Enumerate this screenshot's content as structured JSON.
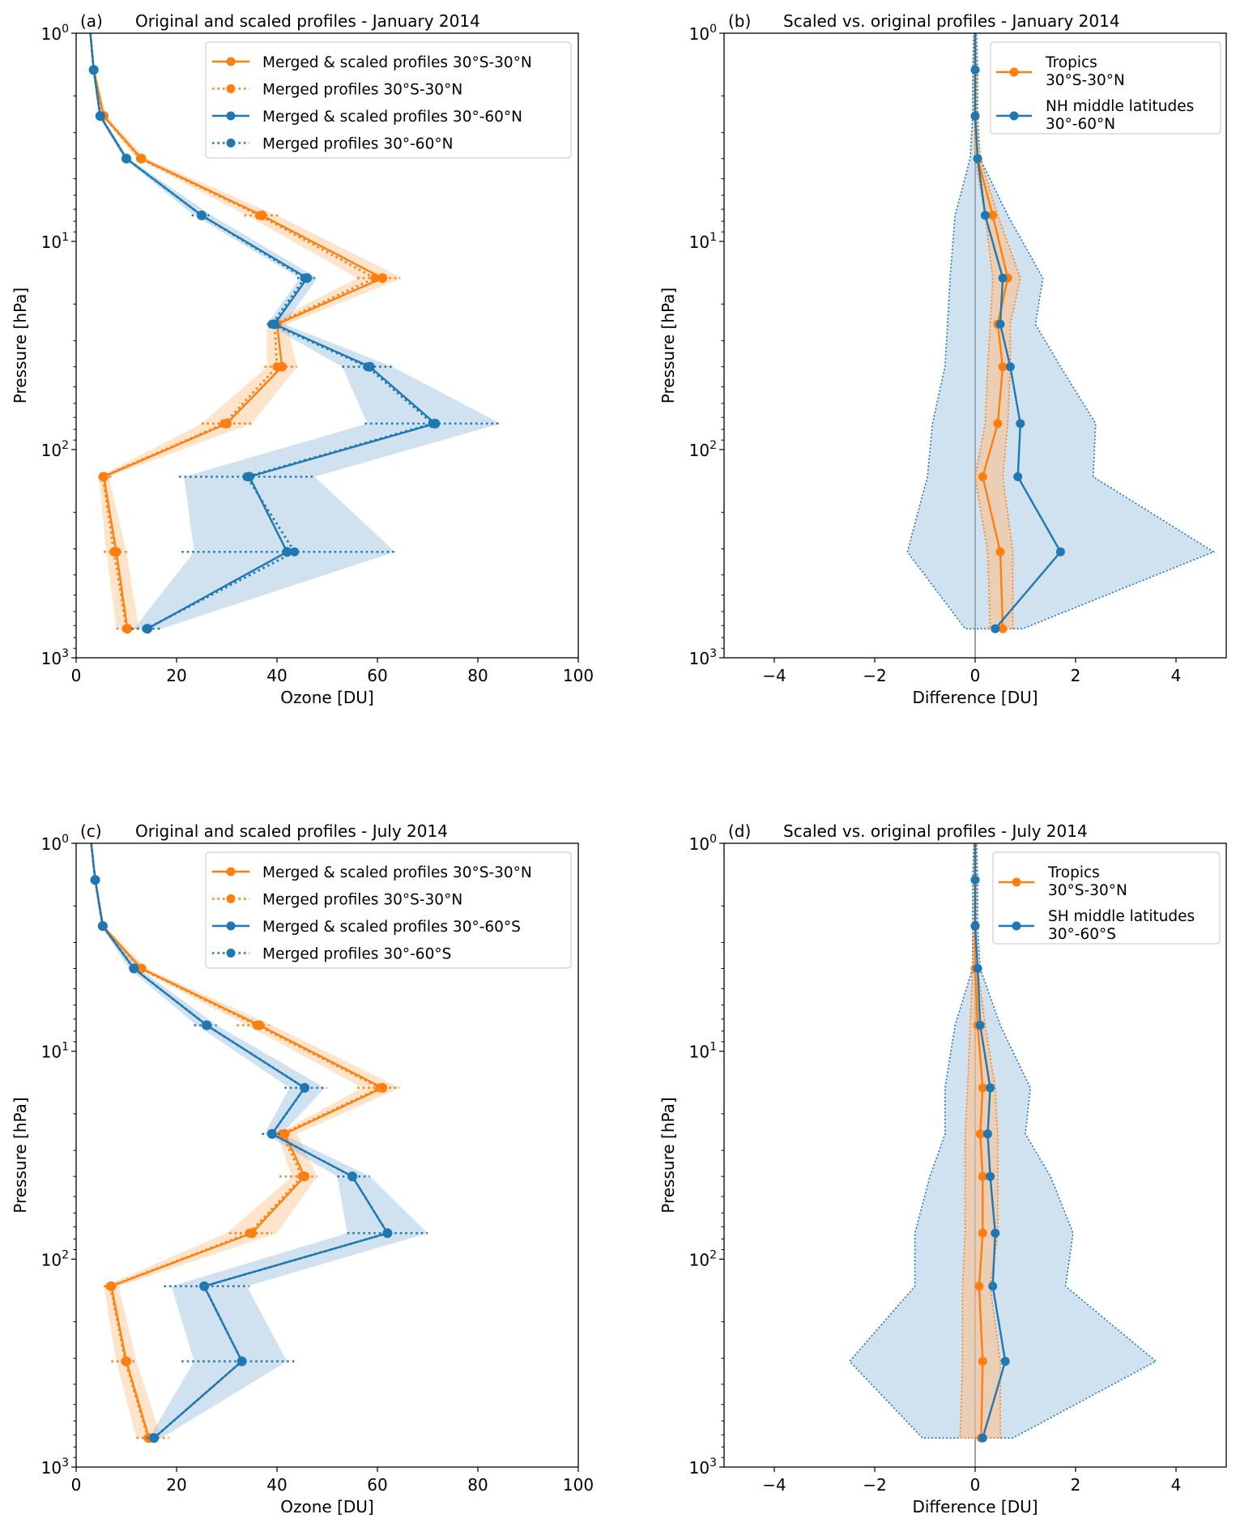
{
  "colors": {
    "orange": "#ff7f0e",
    "blue": "#1f77b4",
    "orange_band": "#ffbe86",
    "blue_band": "#8fbbd9",
    "zero_line": "#a0a0a0"
  },
  "chart_data": [
    {
      "id": "a",
      "type": "line",
      "panel_label": "(a)",
      "title": "Original and scaled profiles - January 2014",
      "xlabel": "Ozone [DU]",
      "ylabel": "Pressure [hPa]",
      "xlim": [
        0,
        100
      ],
      "ylim": [
        1000,
        1
      ],
      "yscale": "log",
      "xticks": [
        "0",
        "20",
        "40",
        "60",
        "80",
        "100"
      ],
      "xtick_values": [
        0,
        20,
        40,
        60,
        80,
        100
      ],
      "yticks": [
        "10^0",
        "10^1",
        "10^2",
        "10^3"
      ],
      "legend_position": "top-right",
      "pressure_levels": [
        0.6,
        1.5,
        2.5,
        4,
        7.5,
        15,
        25,
        40,
        75,
        135,
        310,
        725
      ],
      "series": [
        {
          "name": "Merged & scaled profiles 30°S-30°N",
          "color": "orange",
          "style": "solid",
          "values": [
            2.0,
            3.5,
            5.5,
            13,
            37,
            61,
            40,
            41,
            30,
            5.5,
            8,
            10.2
          ],
          "band_lo": [
            2.0,
            3.3,
            5.2,
            12,
            34,
            56,
            38,
            38,
            25,
            4.5,
            6,
            8
          ],
          "band_hi": [
            2.0,
            3.7,
            6.0,
            14,
            40,
            65,
            42,
            44,
            35,
            6.5,
            10,
            12.5
          ]
        },
        {
          "name": "Merged profiles 30°S-30°N",
          "color": "orange",
          "style": "dotted",
          "values": [
            2.0,
            3.5,
            5.4,
            12.8,
            36.5,
            59.5,
            39.5,
            40,
            29.5,
            5.3,
            7.5,
            10
          ],
          "err_lo": [
            null,
            null,
            null,
            null,
            33.5,
            56,
            38,
            37.5,
            25,
            4.5,
            5.5,
            8
          ],
          "err_hi": [
            null,
            null,
            null,
            null,
            40.5,
            64.5,
            41,
            44,
            35,
            7,
            10.5,
            13
          ]
        },
        {
          "name": "Merged & scaled profiles 30°-60°N",
          "color": "blue",
          "style": "solid",
          "values": [
            2.0,
            3.5,
            4.8,
            10,
            25,
            46,
            39.5,
            58.5,
            71.5,
            34.5,
            42,
            14.2
          ],
          "band_lo": [
            2.0,
            3.3,
            4.5,
            9.5,
            23.5,
            44.5,
            38,
            53,
            58,
            21.5,
            23.5,
            11.5
          ],
          "band_hi": [
            2.0,
            3.7,
            5.1,
            10.5,
            27,
            48,
            41.5,
            63,
            84.5,
            47.5,
            63.5,
            17
          ]
        },
        {
          "name": "Merged profiles 30°-60°N",
          "color": "blue",
          "style": "dotted",
          "values": [
            2.0,
            3.5,
            4.8,
            10,
            25,
            45.5,
            39,
            58,
            71,
            34,
            43.5,
            14
          ],
          "err_lo": [
            null,
            null,
            null,
            null,
            23,
            44,
            38,
            53,
            57.5,
            20.5,
            21,
            11
          ],
          "err_hi": [
            null,
            null,
            null,
            null,
            27,
            47.5,
            41,
            63,
            84.5,
            47.5,
            63.5,
            17
          ]
        }
      ]
    },
    {
      "id": "b",
      "type": "line",
      "panel_label": "(b)",
      "title": "Scaled vs. original profiles - January 2014",
      "xlabel": "Difference [DU]",
      "ylabel": "Pressure [hPa]",
      "xlim": [
        -5,
        5
      ],
      "ylim": [
        1000,
        1
      ],
      "yscale": "log",
      "xticks": [
        "−4",
        "−2",
        "0",
        "2",
        "4"
      ],
      "xtick_values": [
        -4,
        -2,
        0,
        2,
        4
      ],
      "yticks": [
        "10^0",
        "10^1",
        "10^2",
        "10^3"
      ],
      "legend_position": "top-right",
      "pressure_levels": [
        0.6,
        1.5,
        2.5,
        4,
        7.5,
        15,
        25,
        40,
        75,
        135,
        310,
        725
      ],
      "series": [
        {
          "name": "Tropics",
          "name2": "30°S-30°N",
          "color": "orange",
          "values": [
            0.0,
            0.0,
            0.0,
            0.05,
            0.35,
            0.65,
            0.45,
            0.55,
            0.45,
            0.15,
            0.5,
            0.55
          ],
          "band_lo": [
            0.0,
            -0.02,
            -0.02,
            0.0,
            0.2,
            0.35,
            0.3,
            0.25,
            0.2,
            0.0,
            0.25,
            0.3
          ],
          "band_hi": [
            0.0,
            0.03,
            0.03,
            0.1,
            0.45,
            0.9,
            0.7,
            0.7,
            0.65,
            0.55,
            0.75,
            0.75
          ]
        },
        {
          "name": "NH middle latitudes",
          "name2": "30°-60°N",
          "color": "blue",
          "values": [
            0.0,
            0.0,
            0.0,
            0.05,
            0.2,
            0.55,
            0.5,
            0.7,
            0.9,
            0.85,
            1.7,
            0.4
          ],
          "band_lo": [
            0.0,
            -0.05,
            -0.05,
            -0.1,
            -0.4,
            -0.5,
            -0.55,
            -0.6,
            -0.85,
            -0.95,
            -1.35,
            -0.2
          ],
          "band_hi": [
            0.0,
            0.05,
            0.05,
            0.1,
            0.65,
            1.35,
            1.2,
            1.7,
            2.4,
            2.35,
            4.75,
            0.95
          ]
        }
      ]
    },
    {
      "id": "c",
      "type": "line",
      "panel_label": "(c)",
      "title": "Original and scaled profiles - July 2014",
      "xlabel": "Ozone [DU]",
      "ylabel": "Pressure [hPa]",
      "xlim": [
        0,
        100
      ],
      "ylim": [
        1000,
        1
      ],
      "yscale": "log",
      "xticks": [
        "0",
        "20",
        "40",
        "60",
        "80",
        "100"
      ],
      "xtick_values": [
        0,
        20,
        40,
        60,
        80,
        100
      ],
      "yticks": [
        "10^0",
        "10^1",
        "10^2",
        "10^3"
      ],
      "legend_position": "top-right",
      "pressure_levels": [
        0.6,
        1.5,
        2.5,
        4,
        7.5,
        15,
        25,
        40,
        75,
        135,
        310,
        725
      ],
      "series": [
        {
          "name": "Merged & scaled profiles 30°S-30°N",
          "color": "orange",
          "style": "solid",
          "values": [
            2.0,
            3.8,
            5.3,
            13,
            36.5,
            61,
            41.5,
            45.5,
            35,
            7,
            10,
            14.5
          ],
          "band_lo": [
            2.0,
            3.6,
            5.0,
            12,
            34,
            57,
            40,
            43,
            30,
            5.5,
            8,
            12
          ],
          "band_hi": [
            2.0,
            4.0,
            5.6,
            14,
            39,
            64.5,
            44,
            48,
            40,
            8.5,
            12,
            17
          ]
        },
        {
          "name": "Merged profiles 30°S-30°N",
          "color": "orange",
          "style": "dotted",
          "values": [
            2.0,
            3.8,
            5.3,
            12.8,
            36,
            60.5,
            41,
            45,
            34.5,
            6.8,
            9.8,
            14.3
          ],
          "err_lo": [
            null,
            null,
            null,
            null,
            32,
            56,
            40,
            40.5,
            30.5,
            5.5,
            7,
            12
          ],
          "err_hi": [
            null,
            null,
            null,
            null,
            38.5,
            64.5,
            43,
            48,
            39,
            8.5,
            12,
            18.5
          ]
        },
        {
          "name": "Merged & scaled profiles 30°-60°S",
          "color": "blue",
          "style": "solid",
          "values": [
            2.0,
            3.8,
            5.3,
            11.5,
            26,
            45.5,
            39,
            55,
            62,
            25.5,
            33,
            15.5
          ],
          "band_lo": [
            2.0,
            3.6,
            5.0,
            10.5,
            24,
            42.5,
            37.5,
            52,
            54,
            19,
            23.5,
            14.5
          ],
          "band_hi": [
            2.0,
            4.0,
            5.6,
            12.5,
            28,
            49.5,
            41,
            58.5,
            70,
            34,
            42,
            17
          ]
        },
        {
          "name": "Merged profiles 30°-60°S",
          "color": "blue",
          "style": "dotted",
          "values": [
            2.0,
            3.8,
            5.3,
            11.5,
            26,
            45.5,
            39,
            55,
            62,
            25.5,
            33,
            15.5
          ],
          "err_lo": [
            null,
            null,
            null,
            null,
            23.5,
            41.5,
            37,
            52,
            54,
            17.5,
            21,
            14
          ],
          "err_hi": [
            null,
            null,
            null,
            null,
            28,
            50,
            41,
            58.5,
            70,
            34.5,
            43.5,
            17
          ]
        }
      ]
    },
    {
      "id": "d",
      "type": "line",
      "panel_label": "(d)",
      "title": "Scaled vs. original profiles - July 2014",
      "xlabel": "Difference [DU]",
      "ylabel": "Pressure [hPa]",
      "xlim": [
        -5,
        5
      ],
      "ylim": [
        1000,
        1
      ],
      "yscale": "log",
      "xticks": [
        "−4",
        "−2",
        "0",
        "2",
        "4"
      ],
      "xtick_values": [
        -4,
        -2,
        0,
        2,
        4
      ],
      "yticks": [
        "10^0",
        "10^1",
        "10^2",
        "10^3"
      ],
      "legend_position": "top-right",
      "pressure_levels": [
        0.6,
        1.5,
        2.5,
        4,
        7.5,
        15,
        25,
        40,
        75,
        135,
        310,
        725
      ],
      "series": [
        {
          "name": "Tropics",
          "name2": "30°S-30°N",
          "color": "orange",
          "values": [
            0.0,
            0.0,
            0.0,
            0.0,
            0.05,
            0.15,
            0.1,
            0.15,
            0.15,
            0.08,
            0.15,
            0.12
          ],
          "band_lo": [
            0.0,
            -0.02,
            -0.02,
            -0.05,
            -0.1,
            -0.15,
            -0.2,
            -0.2,
            -0.2,
            -0.25,
            -0.25,
            -0.3
          ],
          "band_hi": [
            0.0,
            0.02,
            0.02,
            0.05,
            0.2,
            0.4,
            0.45,
            0.45,
            0.45,
            0.3,
            0.5,
            0.5
          ]
        },
        {
          "name": "SH middle latitudes",
          "name2": "30°-60°S",
          "color": "blue",
          "values": [
            0.0,
            0.0,
            0.0,
            0.05,
            0.1,
            0.3,
            0.25,
            0.3,
            0.4,
            0.35,
            0.6,
            0.15
          ],
          "band_lo": [
            0.0,
            -0.05,
            -0.05,
            -0.05,
            -0.4,
            -0.6,
            -0.6,
            -0.9,
            -1.2,
            -1.2,
            -2.5,
            -1.05
          ],
          "band_hi": [
            0.0,
            0.05,
            0.05,
            0.1,
            0.5,
            1.1,
            1.0,
            1.5,
            1.95,
            1.8,
            3.6,
            0.75
          ]
        }
      ]
    }
  ]
}
